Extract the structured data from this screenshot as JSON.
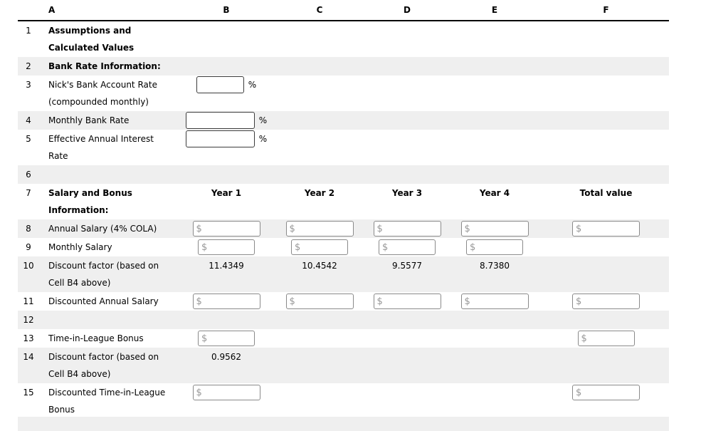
{
  "sheet": {
    "column_letters": [
      "A",
      "B",
      "C",
      "D",
      "E",
      "F"
    ],
    "shaded_row_color": "#efefef",
    "rows": [
      {
        "num": "1",
        "lines": [
          "Assumptions and",
          "Calculated Values"
        ]
      },
      {
        "num": "2",
        "lines": [
          "Bank Rate Information:"
        ]
      },
      {
        "num": "3",
        "lines": [
          "Nick's Bank Account Rate",
          "(compounded monthly)"
        ],
        "suffix": "%",
        "input_value": ""
      },
      {
        "num": "4",
        "lines": [
          "Monthly Bank Rate"
        ],
        "suffix": "%",
        "input_value": ""
      },
      {
        "num": "5",
        "lines": [
          "Effective Annual Interest",
          "Rate"
        ],
        "suffix": "%",
        "input_value": ""
      },
      {
        "num": "6",
        "lines": []
      },
      {
        "num": "7",
        "lines": [
          "Salary and Bonus",
          "Information:"
        ],
        "headers": {
          "b": "Year 1",
          "c": "Year 2",
          "d": "Year 3",
          "e": "Year 4",
          "f": "Total value"
        }
      },
      {
        "num": "8",
        "lines": [
          "Annual Salary (4% COLA)"
        ],
        "placeholder": "$",
        "input_value": ""
      },
      {
        "num": "9",
        "lines": [
          "Monthly Salary"
        ],
        "placeholder": "$",
        "input_value": ""
      },
      {
        "num": "10",
        "lines": [
          "Discount factor (based on",
          "Cell B4 above)"
        ],
        "values": {
          "b": "11.4349",
          "c": "10.4542",
          "d": "9.5577",
          "e": "8.7380"
        }
      },
      {
        "num": "11",
        "lines": [
          "Discounted Annual Salary"
        ],
        "placeholder": "$",
        "input_value": ""
      },
      {
        "num": "12",
        "lines": []
      },
      {
        "num": "13",
        "lines": [
          "Time-in-League Bonus"
        ],
        "placeholder": "$",
        "input_value": ""
      },
      {
        "num": "14",
        "lines": [
          "Discount factor (based on",
          "Cell B4 above)"
        ],
        "values": {
          "b": "0.9562"
        }
      },
      {
        "num": "15",
        "lines": [
          "Discounted Time-in-League",
          "Bonus"
        ],
        "placeholder": "$",
        "input_value": ""
      }
    ]
  }
}
